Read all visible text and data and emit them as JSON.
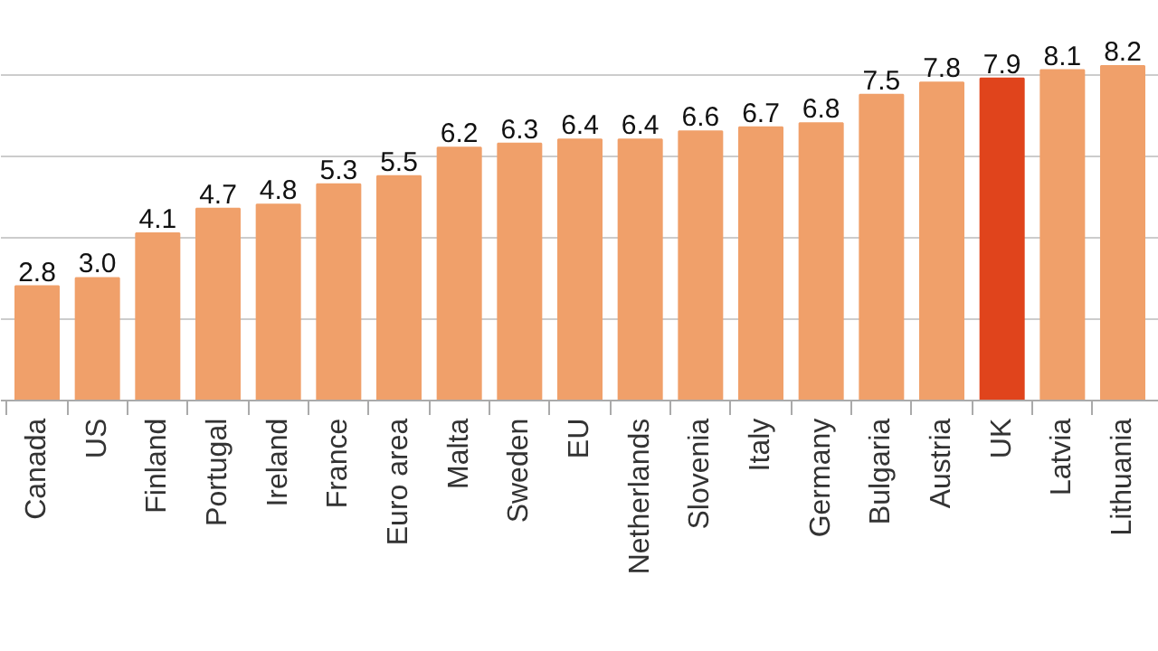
{
  "chart_data": {
    "type": "bar",
    "categories": [
      "Canada",
      "US",
      "Finland",
      "Portugal",
      "Ireland",
      "France",
      "Euro area",
      "Malta",
      "Sweden",
      "EU",
      "Netherlands",
      "Slovenia",
      "Italy",
      "Germany",
      "Bulgaria",
      "Austria",
      "UK",
      "Latvia",
      "Lithuania"
    ],
    "values": [
      2.8,
      3.0,
      4.1,
      4.7,
      4.8,
      5.3,
      5.5,
      6.2,
      6.3,
      6.4,
      6.4,
      6.6,
      6.7,
      6.8,
      7.5,
      7.8,
      7.9,
      8.1,
      8.2
    ],
    "colors": [
      "#f0a06a",
      "#f0a06a",
      "#f0a06a",
      "#f0a06a",
      "#f0a06a",
      "#f0a06a",
      "#f0a06a",
      "#f0a06a",
      "#f0a06a",
      "#f0a06a",
      "#f0a06a",
      "#f0a06a",
      "#f0a06a",
      "#f0a06a",
      "#f0a06a",
      "#f0a06a",
      "#e0441c",
      "#f0a06a",
      "#f0a06a"
    ],
    "ylim": [
      0,
      9.8
    ],
    "yticks": [
      {
        "value": 2,
        "label": null
      },
      {
        "value": 4,
        "label": null
      },
      {
        "value": 6,
        "label": null
      },
      {
        "value": 8,
        "label": null
      }
    ],
    "value_labels": [
      "2.8",
      "3.0",
      "4.1",
      "4.7",
      "4.8",
      "5.3",
      "5.5",
      "6.2",
      "6.3",
      "6.4",
      "6.4",
      "6.6",
      "6.7",
      "6.8",
      "7.5",
      "7.8",
      "7.9",
      "8.1",
      "8.2"
    ],
    "grid": "y",
    "tick_labels": "x"
  }
}
